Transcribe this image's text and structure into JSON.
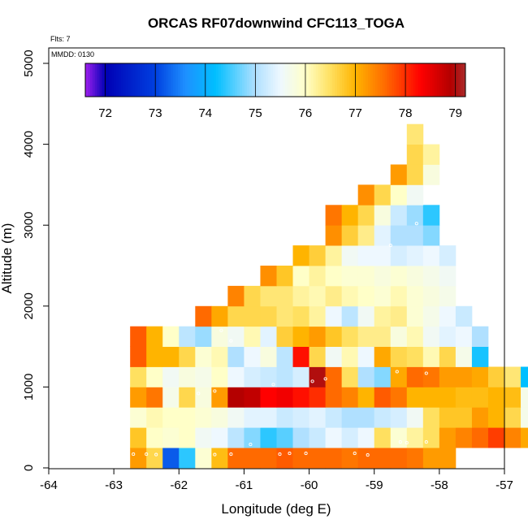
{
  "chart_data": {
    "type": "heatmap",
    "title": "ORCAS RF07downwind CFC113_TOGA",
    "flights_note": "Flts: 7",
    "date_note": "MMDD: 0130",
    "xlabel": "Longitude (deg E)",
    "ylabel": "Altitude (m)",
    "xlim": [
      -64,
      -57
    ],
    "ylim": [
      0,
      5200
    ],
    "x_ticks": [
      -64,
      -63,
      -62,
      -61,
      -60,
      -59,
      -58,
      -57
    ],
    "y_ticks": [
      0,
      1000,
      2000,
      3000,
      4000,
      5000
    ],
    "cell_width_deg": 0.25,
    "cell_height_m": 250,
    "colorbar": {
      "range": [
        71.6,
        79.2
      ],
      "ticks": [
        72,
        73,
        74,
        75,
        76,
        77,
        78,
        79
      ],
      "stops": [
        {
          "v": 71.6,
          "c": "#a020f0"
        },
        {
          "v": 72.0,
          "c": "#0000b4"
        },
        {
          "v": 73.0,
          "c": "#0040e0"
        },
        {
          "v": 73.6,
          "c": "#1e90ff"
        },
        {
          "v": 74.2,
          "c": "#00bfff"
        },
        {
          "v": 75.0,
          "c": "#b0e0ff"
        },
        {
          "v": 75.5,
          "c": "#eef8ff"
        },
        {
          "v": 76.0,
          "c": "#ffffc8"
        },
        {
          "v": 76.5,
          "c": "#ffe060"
        },
        {
          "v": 77.0,
          "c": "#ffb400"
        },
        {
          "v": 77.6,
          "c": "#ff6a00"
        },
        {
          "v": 78.3,
          "c": "#ff0000"
        },
        {
          "v": 78.9,
          "c": "#b40000"
        },
        {
          "v": 79.2,
          "c": "#aa2a2a"
        }
      ]
    },
    "rows": [
      {
        "alt": 0,
        "lon_start": -62.75,
        "values": [
          77.2,
          76.6,
          73.2,
          74.4,
          75.9,
          76.9,
          77.6,
          77.6,
          77.6,
          77.7,
          77.6,
          77.6,
          77.6,
          77.5,
          77.6,
          77.6,
          77.6,
          77.5,
          77.2,
          77.2
        ]
      },
      {
        "alt": 250,
        "lon_start": -62.75,
        "values": [
          76.8,
          76.0,
          75.9,
          76.0,
          75.6,
          75.5,
          75.1,
          74.8,
          74.4,
          74.6,
          75.0,
          75.2,
          75.5,
          75.3,
          75.5,
          76.5,
          75.9,
          76.2,
          76.5,
          77.2,
          77.4,
          77.6,
          77.9,
          77.4,
          77.1
        ]
      },
      {
        "alt": 500,
        "lon_start": -62.75,
        "values": [
          75.9,
          76.1,
          76.0,
          76.0,
          75.9,
          75.8,
          75.6,
          75.4,
          75.4,
          75.2,
          75.3,
          75.4,
          75.2,
          75.0,
          75.0,
          75.2,
          75.3,
          75.6,
          76.5,
          76.8,
          76.8,
          77.2,
          77.0,
          76.6,
          75.7,
          75.9
        ]
      },
      {
        "alt": 750,
        "lon_start": -62.75,
        "values": [
          77.2,
          77.5,
          75.7,
          76.6,
          75.8,
          77.2,
          78.9,
          78.8,
          78.3,
          78.4,
          78.2,
          78.0,
          77.6,
          77.4,
          77.0,
          77.7,
          77.5,
          77.0,
          77.0,
          77.0,
          76.9,
          76.9,
          77.0,
          76.9,
          75.7,
          75.3
        ]
      },
      {
        "alt": 1000,
        "lon_start": -62.75,
        "values": [
          76.5,
          76.0,
          75.6,
          75.8,
          75.7,
          76.0,
          75.5,
          75.3,
          75.2,
          75.1,
          75.3,
          79.0,
          77.6,
          76.5,
          75.0,
          74.8,
          77.1,
          77.6,
          77.5,
          77.2,
          77.2,
          77.1,
          76.7,
          76.4,
          74.2
        ]
      },
      {
        "alt": 1250,
        "lon_start": -62.75,
        "values": [
          77.7,
          77.0,
          77.0,
          76.6,
          75.9,
          76.1,
          75.0,
          75.5,
          75.8,
          75.1,
          78.2,
          76.6,
          75.6,
          76.1,
          75.5,
          77.1,
          76.6,
          76.5,
          76.1,
          76.6,
          75.7,
          74.3
        ]
      },
      {
        "alt": 1500,
        "lon_start": -62.75,
        "values": [
          77.7,
          77.0,
          76.0,
          75.1,
          74.9,
          75.8,
          75.6,
          76.1,
          75.4,
          76.7,
          77.0,
          77.2,
          76.8,
          76.5,
          76.3,
          76.3,
          75.8,
          76.1,
          75.6,
          75.4,
          75.5,
          75.0
        ]
      },
      {
        "alt": 1750,
        "lon_start": -61.75,
        "values": [
          77.6,
          77.1,
          76.6,
          76.6,
          76.6,
          76.4,
          76.5,
          76.2,
          75.5,
          75.1,
          75.6,
          76.2,
          76.3,
          75.9,
          75.7,
          75.5,
          75.2
        ]
      },
      {
        "alt": 2000,
        "lon_start": -61.25,
        "values": [
          77.4,
          76.6,
          76.4,
          76.4,
          76.2,
          76.1,
          76.3,
          76.1,
          76.0,
          75.9,
          76.1,
          75.9,
          75.8,
          75.7
        ]
      },
      {
        "alt": 2250,
        "lon_start": -60.75,
        "values": [
          77.3,
          76.8,
          76.0,
          76.2,
          76.0,
          75.9,
          75.9,
          75.8,
          75.9,
          75.8,
          75.7,
          75.6
        ]
      },
      {
        "alt": 2500,
        "lon_start": -60.25,
        "values": [
          77.0,
          76.7,
          76.2,
          75.6,
          75.5,
          75.5,
          75.3,
          75.4,
          75.5,
          75.3
        ]
      },
      {
        "alt": 2750,
        "lon_start": -59.75,
        "values": [
          77.3,
          76.7,
          76.3,
          75.4,
          75.0,
          75.0,
          74.8
        ]
      },
      {
        "alt": 3000,
        "lon_start": -59.75,
        "values": [
          77.5,
          77.0,
          76.6,
          75.8,
          75.2,
          74.9,
          74.4
        ]
      },
      {
        "alt": 3250,
        "lon_start": -59.25,
        "values": [
          77.3,
          76.6,
          76.0,
          75.6
        ]
      },
      {
        "alt": 3500,
        "lon_start": -58.75,
        "values": [
          77.2,
          76.6,
          75.8
        ]
      },
      {
        "alt": 3750,
        "lon_start": -58.5,
        "values": [
          76.6,
          76.2
        ]
      },
      {
        "alt": 4000,
        "lon_start": -58.5,
        "values": [
          76.4
        ]
      }
    ],
    "sample_points": [
      [
        -62.7,
        170
      ],
      [
        -62.5,
        170
      ],
      [
        -62.35,
        165
      ],
      [
        -61.45,
        165
      ],
      [
        -61.2,
        170
      ],
      [
        -60.9,
        290
      ],
      [
        -60.45,
        170
      ],
      [
        -60.3,
        180
      ],
      [
        -60.05,
        180
      ],
      [
        -59.3,
        180
      ],
      [
        -59.1,
        160
      ],
      [
        -61.2,
        1570
      ],
      [
        -61.35,
        1700
      ],
      [
        -61.7,
        920
      ],
      [
        -61.45,
        950
      ],
      [
        -60.55,
        1030
      ],
      [
        -59.95,
        1070
      ],
      [
        -59.75,
        1100
      ],
      [
        -58.65,
        1190
      ],
      [
        -58.2,
        1170
      ],
      [
        -58.6,
        320
      ],
      [
        -58.5,
        310
      ],
      [
        -58.2,
        320
      ],
      [
        -58.35,
        3020
      ],
      [
        -58.55,
        3960
      ],
      [
        -58.75,
        2750
      ]
    ]
  }
}
